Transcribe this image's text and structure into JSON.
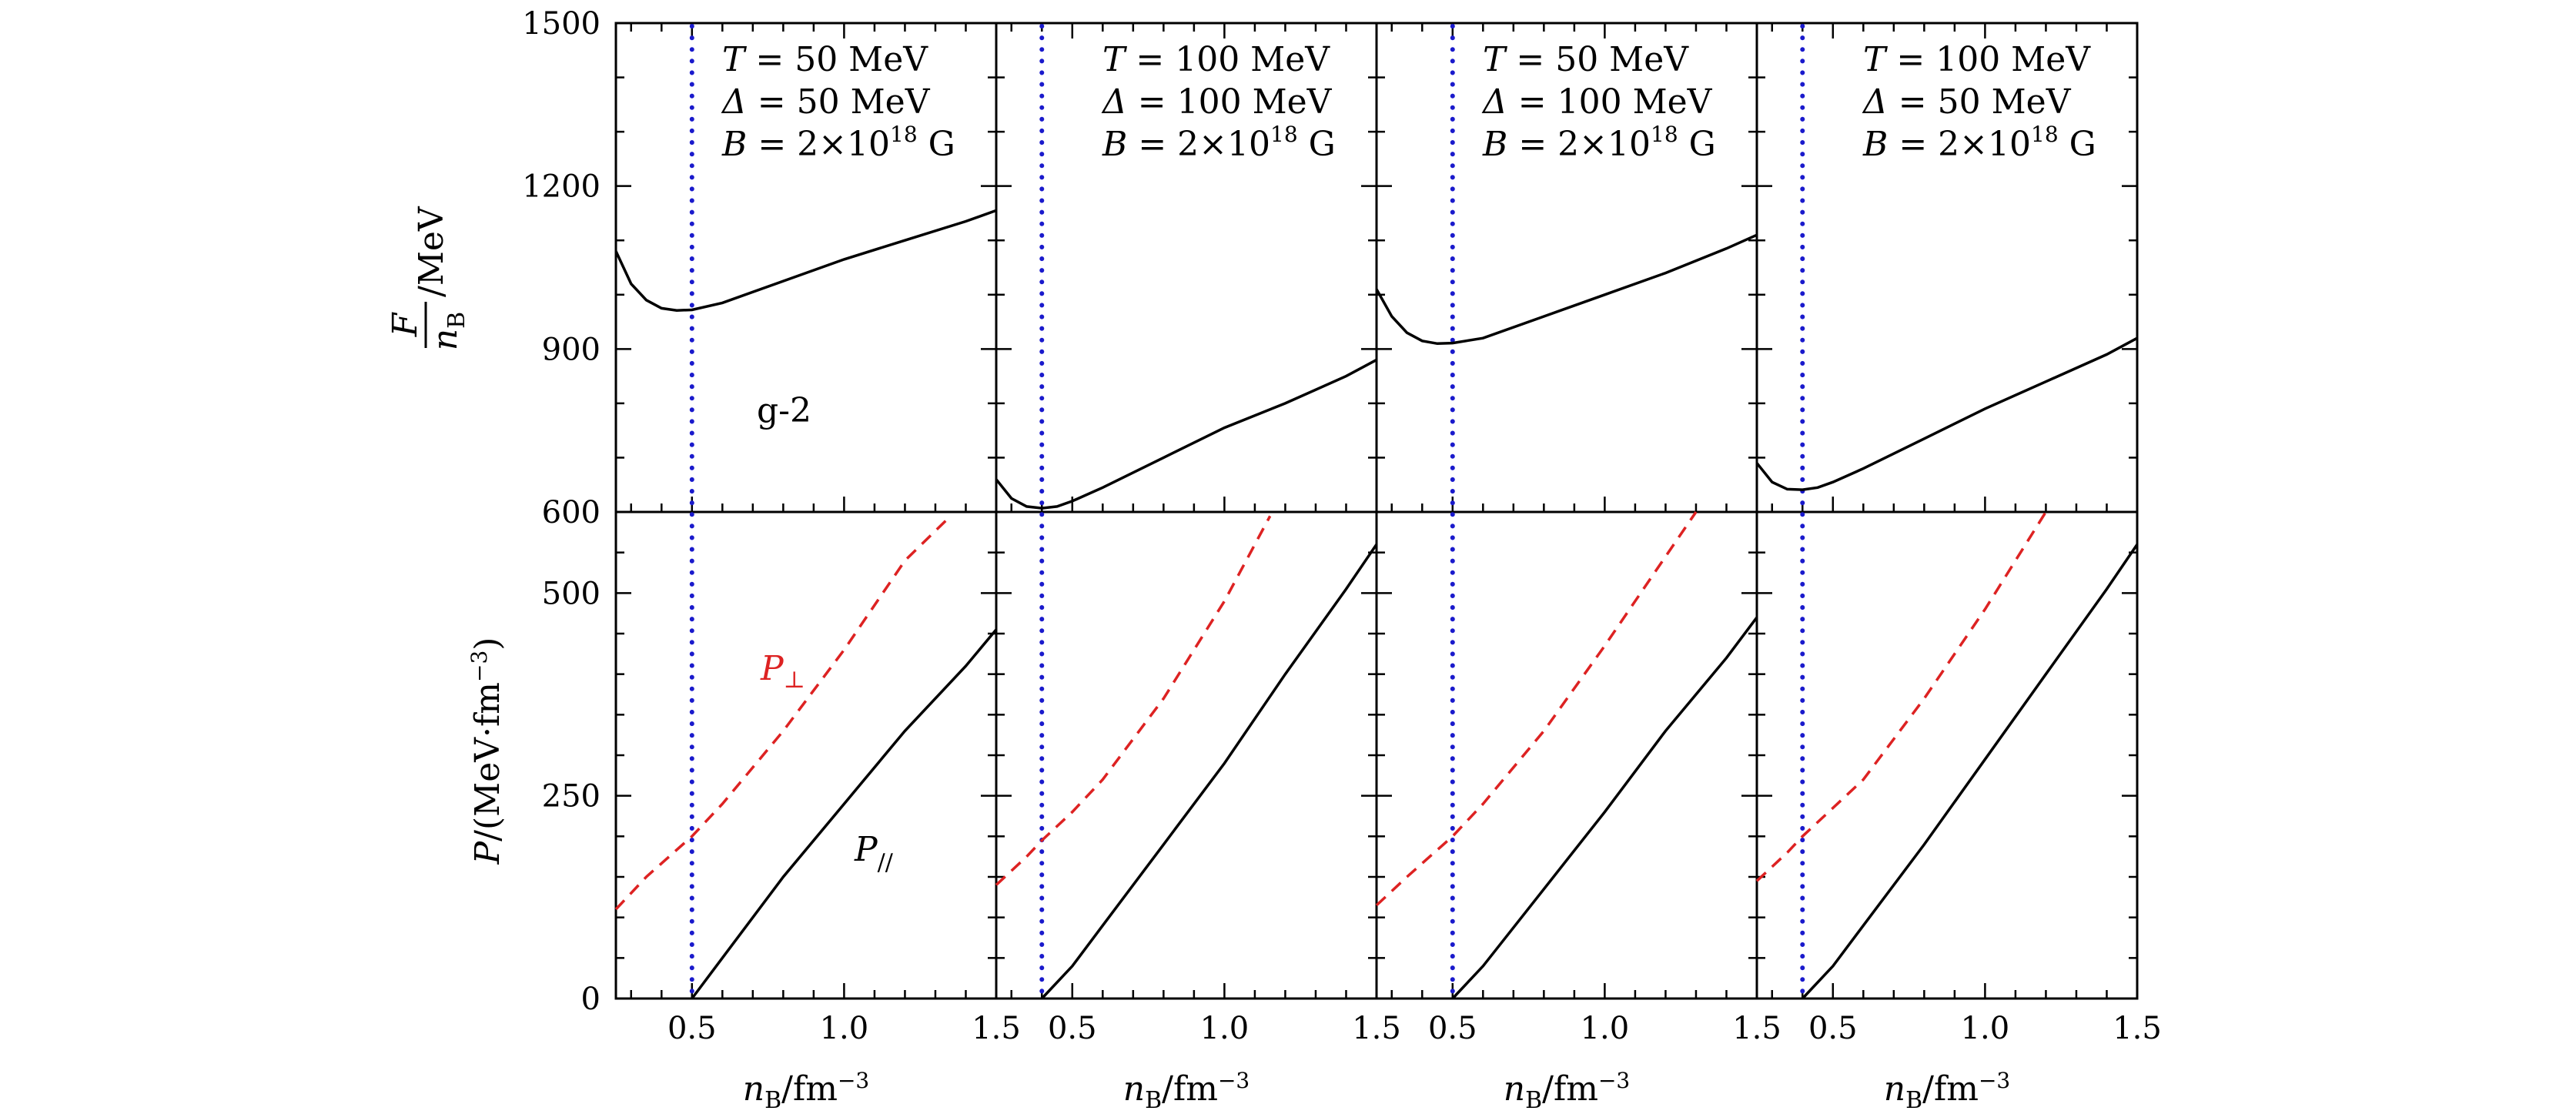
{
  "chart_data": {
    "type": "line",
    "x_axis": {
      "label_main": "n",
      "label_sub": "B",
      "label_unit": "/fm",
      "label_exp": "−3",
      "xlim": [
        0.25,
        1.5
      ],
      "ticks": [
        0.5,
        1.0,
        1.5
      ],
      "tick_labels": [
        "0.5",
        "1.0",
        "1.5"
      ]
    },
    "top_axis": {
      "label_num": "F",
      "label_den_main": "n",
      "label_den_sub": "B",
      "label_unit": "/MeV",
      "ylim": [
        600,
        1500
      ],
      "ticks": [
        600,
        900,
        1200,
        1500
      ],
      "tick_labels": [
        "600",
        "900",
        "1200",
        "1500"
      ]
    },
    "bottom_axis": {
      "label_main": "P",
      "label_rest": "/(MeV·fm",
      "label_exp": "−3",
      "label_close": ")",
      "ylim": [
        0,
        600
      ],
      "ticks": [
        0,
        250,
        500
      ],
      "tick_labels": [
        "0",
        "250",
        "500"
      ]
    },
    "annotations": {
      "g2": "g-2",
      "p_perp_main": "P",
      "p_perp_sub": "⊥",
      "p_par_main": "P",
      "p_par_sub": "//"
    },
    "legend_text": {
      "T": "T",
      "Delta": "Δ",
      "B": "B",
      "eq": " = ",
      "b_mant": "2×10",
      "b_exp": "18",
      "b_unit": " G"
    },
    "colors": {
      "p_perp": "#dd2222",
      "p_par": "#000000",
      "energy": "#000000",
      "saturation": "#1a1acc"
    },
    "panels": [
      {
        "T": "50 MeV",
        "Delta": "50 MeV",
        "B": "2×10^18 G",
        "saturation_density": 0.5,
        "energy_per_baryon": {
          "x": [
            0.25,
            0.3,
            0.35,
            0.4,
            0.45,
            0.5,
            0.6,
            0.8,
            1.0,
            1.2,
            1.4,
            1.5
          ],
          "y": [
            1080,
            1020,
            990,
            975,
            971,
            972,
            985,
            1025,
            1065,
            1100,
            1135,
            1155
          ]
        },
        "P_perp": {
          "x": [
            0.25,
            0.35,
            0.5,
            0.6,
            0.8,
            1.0,
            1.2,
            1.35
          ],
          "y": [
            110,
            150,
            200,
            240,
            330,
            430,
            540,
            595
          ]
        },
        "P_par": {
          "x": [
            0.5,
            0.6,
            0.8,
            1.0,
            1.2,
            1.4,
            1.5
          ],
          "y": [
            0,
            50,
            150,
            240,
            330,
            410,
            455
          ]
        }
      },
      {
        "T": "100 MeV",
        "Delta": "100 MeV",
        "B": "2×10^18 G",
        "saturation_density": 0.4,
        "energy_per_baryon": {
          "x": [
            0.25,
            0.3,
            0.35,
            0.4,
            0.45,
            0.5,
            0.6,
            0.8,
            1.0,
            1.2,
            1.4,
            1.5
          ],
          "y": [
            660,
            625,
            610,
            607,
            610,
            620,
            645,
            700,
            755,
            800,
            850,
            880
          ]
        },
        "P_perp": {
          "x": [
            0.25,
            0.35,
            0.4,
            0.5,
            0.6,
            0.8,
            1.0,
            1.15
          ],
          "y": [
            140,
            175,
            195,
            230,
            270,
            370,
            490,
            595
          ]
        },
        "P_par": {
          "x": [
            0.4,
            0.5,
            0.6,
            0.8,
            1.0,
            1.2,
            1.4,
            1.5
          ],
          "y": [
            0,
            40,
            90,
            190,
            290,
            400,
            505,
            560
          ]
        }
      },
      {
        "T": "50 MeV",
        "Delta": "100 MeV",
        "B": "2×10^18 G",
        "saturation_density": 0.5,
        "energy_per_baryon": {
          "x": [
            0.25,
            0.3,
            0.35,
            0.4,
            0.45,
            0.5,
            0.6,
            0.8,
            1.0,
            1.2,
            1.4,
            1.5
          ],
          "y": [
            1010,
            960,
            930,
            915,
            910,
            911,
            920,
            960,
            1000,
            1040,
            1085,
            1110
          ]
        },
        "P_perp": {
          "x": [
            0.25,
            0.35,
            0.5,
            0.6,
            0.8,
            1.0,
            1.2,
            1.3
          ],
          "y": [
            115,
            150,
            200,
            240,
            330,
            435,
            545,
            600
          ]
        },
        "P_par": {
          "x": [
            0.5,
            0.6,
            0.8,
            1.0,
            1.2,
            1.4,
            1.5
          ],
          "y": [
            0,
            40,
            135,
            230,
            330,
            420,
            470
          ]
        }
      },
      {
        "T": "100 MeV",
        "Delta": "50 MeV",
        "B": "2×10^18 G",
        "saturation_density": 0.4,
        "energy_per_baryon": {
          "x": [
            0.25,
            0.3,
            0.35,
            0.4,
            0.45,
            0.5,
            0.6,
            0.8,
            1.0,
            1.2,
            1.4,
            1.5
          ],
          "y": [
            690,
            655,
            642,
            641,
            645,
            655,
            680,
            735,
            790,
            840,
            890,
            920
          ]
        },
        "P_perp": {
          "x": [
            0.25,
            0.35,
            0.4,
            0.5,
            0.6,
            0.8,
            1.0,
            1.2
          ],
          "y": [
            145,
            180,
            200,
            235,
            270,
            370,
            480,
            600
          ]
        },
        "P_par": {
          "x": [
            0.4,
            0.5,
            0.6,
            0.8,
            1.0,
            1.2,
            1.4,
            1.5
          ],
          "y": [
            0,
            40,
            90,
            190,
            295,
            400,
            505,
            560
          ]
        }
      }
    ]
  }
}
